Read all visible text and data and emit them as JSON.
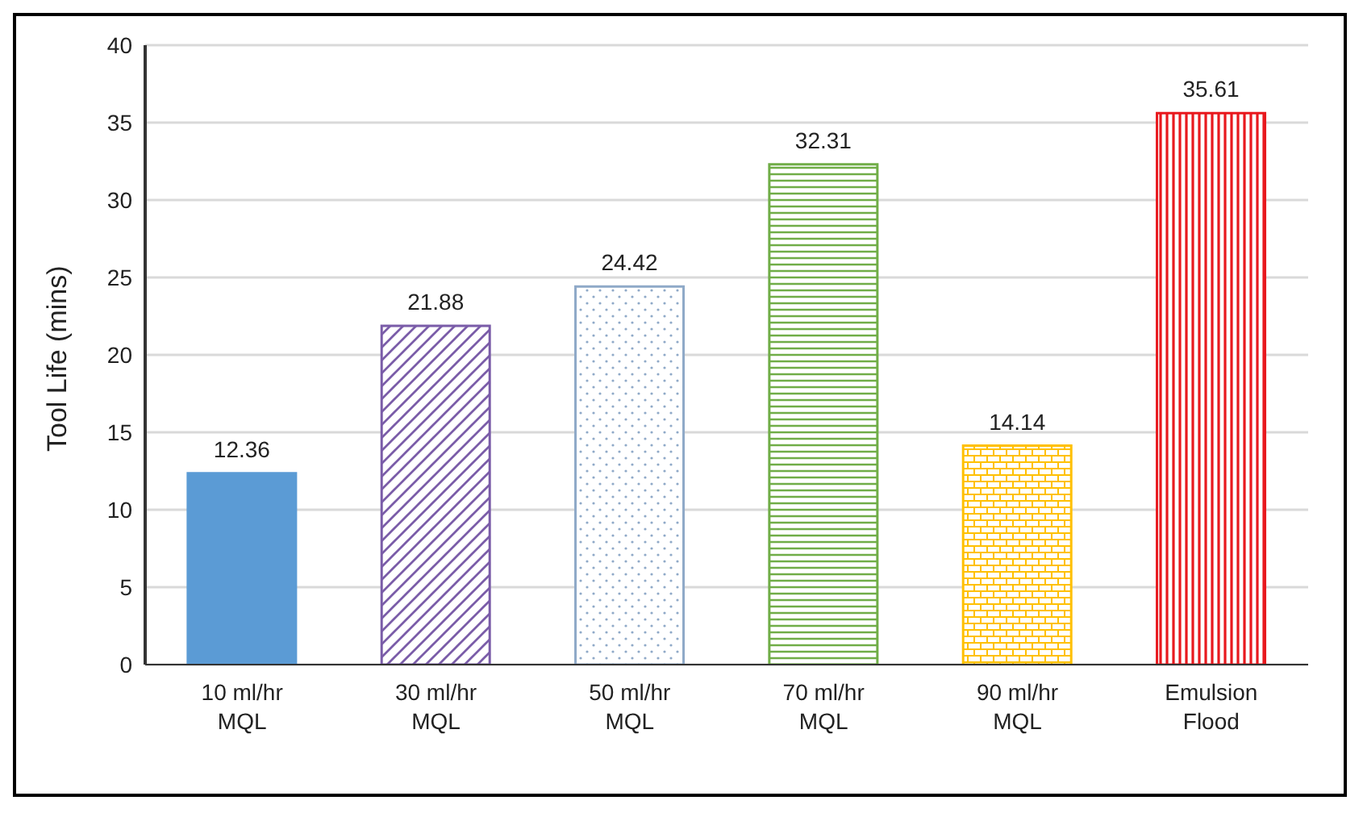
{
  "chart_data": {
    "type": "bar",
    "ylabel": "Tool Life (mins)",
    "categories": [
      "10 ml/hr MQL",
      "30 ml/hr MQL",
      "50 ml/hr MQL",
      "70 ml/hr MQL",
      "90 ml/hr MQL",
      "Emulsion Flood"
    ],
    "values": [
      12.36,
      21.88,
      24.42,
      32.31,
      14.14,
      35.61
    ],
    "colors": [
      "#5b9bd5",
      "#7a5ca8",
      "#8fa9c8",
      "#70ad47",
      "#ffc000",
      "#e8191e"
    ],
    "ylim": [
      0,
      40
    ],
    "yticks": [
      0,
      5,
      10,
      15,
      20,
      25,
      30,
      35,
      40
    ],
    "grid": "y",
    "data_labels": true
  }
}
